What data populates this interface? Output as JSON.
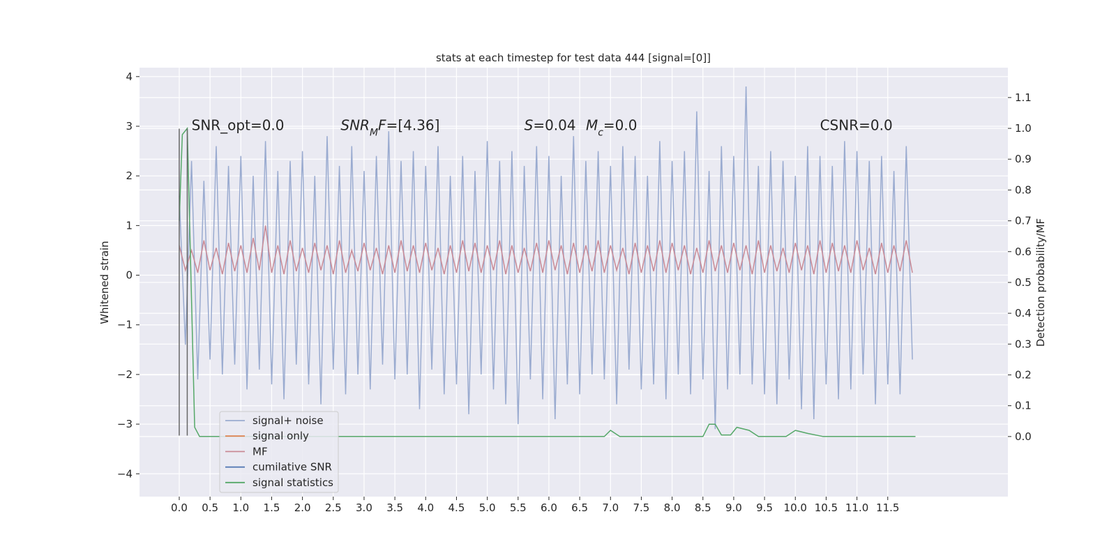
{
  "chart_data": {
    "type": "line",
    "title": "stats at each timestep for test data 444 [signal=[0]]",
    "ylabel": "Whitened strain",
    "y2label": "Detection probability/MF",
    "grid": true,
    "legend": "lower left",
    "xlim": [
      -0.645,
      13.45
    ],
    "ylim": [
      -4.46,
      4.18
    ],
    "y2lim": [
      -0.195,
      1.197
    ],
    "xticks": [
      {
        "value": 0,
        "label": "0.0"
      },
      {
        "value": 0.5,
        "label": "0.5"
      },
      {
        "value": 1,
        "label": "1.0"
      },
      {
        "value": 1.5,
        "label": "1.5"
      },
      {
        "value": 2,
        "label": "2.0"
      },
      {
        "value": 2.5,
        "label": "2.5"
      },
      {
        "value": 3,
        "label": "3.0"
      },
      {
        "value": 3.5,
        "label": "3.5"
      },
      {
        "value": 4,
        "label": "4.0"
      },
      {
        "value": 4.5,
        "label": "4.5"
      },
      {
        "value": 5,
        "label": "5.0"
      },
      {
        "value": 5.5,
        "label": "5.5"
      },
      {
        "value": 6,
        "label": "6.0"
      },
      {
        "value": 6.5,
        "label": "6.5"
      },
      {
        "value": 7,
        "label": "7.0"
      },
      {
        "value": 7.5,
        "label": "7.5"
      },
      {
        "value": 8,
        "label": "8.0"
      },
      {
        "value": 8.5,
        "label": "8.5"
      },
      {
        "value": 9,
        "label": "9.0"
      },
      {
        "value": 9.5,
        "label": "9.5"
      },
      {
        "value": 10,
        "label": "10.0"
      },
      {
        "value": 10.5,
        "label": "10.5"
      },
      {
        "value": 11,
        "label": "11.0"
      },
      {
        "value": 11.5,
        "label": "11.5"
      }
    ],
    "yticks": [
      {
        "value": -4,
        "label": "−4"
      },
      {
        "value": -3,
        "label": "−3"
      },
      {
        "value": -2,
        "label": "−2"
      },
      {
        "value": -1,
        "label": "−1"
      },
      0,
      1,
      2,
      3,
      4
    ],
    "y2ticks": [
      {
        "value": 0,
        "label": "0.0"
      },
      {
        "value": 0.1,
        "label": "0.1"
      },
      {
        "value": 0.2,
        "label": "0.2"
      },
      {
        "value": 0.3,
        "label": "0.3"
      },
      {
        "value": 0.4,
        "label": "0.4"
      },
      {
        "value": 0.5,
        "label": "0.5"
      },
      {
        "value": 0.6,
        "label": "0.6"
      },
      {
        "value": 0.7,
        "label": "0.7"
      },
      {
        "value": 0.8,
        "label": "0.8"
      },
      {
        "value": 0.9,
        "label": "0.9"
      },
      {
        "value": 1,
        "label": "1.0"
      },
      {
        "value": 1.1,
        "label": "1.1"
      }
    ],
    "x": [
      0.0,
      0.1,
      0.2,
      0.3,
      0.4,
      0.5,
      0.6,
      0.7,
      0.8,
      0.9,
      1.0,
      1.1,
      1.2,
      1.3,
      1.4,
      1.5,
      1.6,
      1.7,
      1.8,
      1.9,
      2.0,
      2.1,
      2.2,
      2.3,
      2.4,
      2.5,
      2.6,
      2.7,
      2.8,
      2.9,
      3.0,
      3.1,
      3.2,
      3.3,
      3.4,
      3.5,
      3.6,
      3.7,
      3.8,
      3.9,
      4.0,
      4.1,
      4.2,
      4.3,
      4.4,
      4.5,
      4.6,
      4.7,
      4.8,
      4.9,
      5.0,
      5.1,
      5.2,
      5.3,
      5.4,
      5.5,
      5.6,
      5.7,
      5.8,
      5.9,
      6.0,
      6.1,
      6.2,
      6.3,
      6.4,
      6.5,
      6.6,
      6.7,
      6.8,
      6.9,
      7.0,
      7.1,
      7.2,
      7.3,
      7.4,
      7.5,
      7.6,
      7.7,
      7.8,
      7.9,
      8.0,
      8.1,
      8.2,
      8.3,
      8.4,
      8.5,
      8.6,
      8.7,
      8.8,
      8.9,
      9.0,
      9.1,
      9.2,
      9.3,
      9.4,
      9.5,
      9.6,
      9.7,
      9.8,
      9.9,
      10.0,
      10.1,
      10.2,
      10.3,
      10.4,
      10.5,
      10.6,
      10.7,
      10.8,
      10.9,
      11.0,
      11.1,
      11.2,
      11.3,
      11.4,
      11.5,
      11.6,
      11.7,
      11.8,
      11.9
    ],
    "series": [
      {
        "name": "signal+ noise",
        "color": "#9aabd0",
        "values": [
          1.6,
          -1.4,
          2.3,
          -2.1,
          1.9,
          -1.7,
          2.6,
          -2.0,
          2.2,
          -1.8,
          2.4,
          -2.3,
          2.0,
          -1.9,
          2.7,
          -2.2,
          2.1,
          -2.5,
          2.3,
          -1.8,
          2.5,
          -2.2,
          2.0,
          -2.6,
          2.8,
          -1.9,
          2.2,
          -2.4,
          2.6,
          -2.0,
          2.1,
          -2.3,
          2.4,
          -1.8,
          2.9,
          -2.1,
          2.3,
          -2.0,
          2.5,
          -2.7,
          2.2,
          -1.9,
          2.6,
          -2.4,
          2.0,
          -2.2,
          2.4,
          -2.8,
          2.1,
          -2.0,
          2.7,
          -2.3,
          2.3,
          -2.6,
          2.5,
          -3.0,
          2.2,
          -2.1,
          2.6,
          -2.5,
          2.4,
          -2.9,
          2.0,
          -2.2,
          2.8,
          -2.4,
          2.3,
          -2.0,
          2.5,
          -2.1,
          2.2,
          -2.6,
          2.6,
          -1.9,
          2.4,
          -2.3,
          2.0,
          -2.2,
          2.7,
          -2.5,
          2.3,
          -2.0,
          2.5,
          -2.4,
          3.3,
          -2.1,
          2.1,
          -3.1,
          2.6,
          -2.3,
          2.4,
          -2.0,
          3.8,
          -2.2,
          2.2,
          -2.4,
          2.5,
          -2.6,
          2.3,
          -2.1,
          2.0,
          -2.7,
          2.6,
          -2.9,
          2.4,
          -2.2,
          2.2,
          -2.5,
          2.7,
          -2.3,
          2.5,
          -2.0,
          2.3,
          -2.6,
          2.4,
          -2.2,
          2.1,
          -2.4,
          2.6,
          -1.7
        ]
      },
      {
        "name": "signal only",
        "color": "#dd8452"
      },
      {
        "name": "MF",
        "color": "#c98a96",
        "values": [
          0.6,
          0.1,
          0.5,
          0.05,
          0.7,
          0.1,
          0.55,
          0.02,
          0.65,
          0.08,
          0.6,
          0.05,
          0.75,
          0.1,
          1.0,
          0.05,
          0.6,
          0.02,
          0.7,
          0.08,
          0.55,
          0.05,
          0.65,
          0.1,
          0.6,
          0.02,
          0.7,
          0.05,
          0.5,
          0.08,
          0.65,
          0.1,
          0.55,
          0.02,
          0.6,
          0.05,
          0.7,
          0.08,
          0.6,
          0.05,
          0.65,
          0.1,
          0.55,
          0.02,
          0.6,
          0.05,
          0.7,
          0.08,
          0.65,
          0.05,
          0.6,
          0.1,
          0.7,
          0.02,
          0.6,
          0.05,
          0.55,
          0.08,
          0.65,
          0.05,
          0.7,
          0.1,
          0.6,
          0.02,
          0.65,
          0.05,
          0.6,
          0.08,
          0.7,
          0.05,
          0.6,
          0.1,
          0.55,
          0.02,
          0.65,
          0.05,
          0.6,
          0.08,
          0.7,
          0.05,
          0.65,
          0.1,
          0.6,
          0.02,
          0.55,
          0.05,
          0.7,
          0.08,
          0.6,
          0.05,
          0.65,
          0.1,
          0.6,
          0.02,
          0.7,
          0.05,
          0.6,
          0.08,
          0.55,
          0.05,
          0.65,
          0.1,
          0.6,
          0.02,
          0.7,
          0.05,
          0.65,
          0.08,
          0.6,
          0.05,
          0.7,
          0.1,
          0.55,
          0.02,
          0.65,
          0.05,
          0.6,
          0.08,
          0.7,
          0.05
        ]
      },
      {
        "name": "cumilative SNR",
        "color": "#4c72b0"
      },
      {
        "name": "signal statistics",
        "color": "#55a868",
        "axis": "y2",
        "x": [
          0.0,
          0.05,
          0.13,
          0.25,
          0.33,
          6.9,
          7.0,
          7.15,
          8.5,
          8.6,
          8.7,
          8.8,
          8.95,
          9.05,
          9.25,
          9.4,
          9.85,
          10.0,
          10.2,
          10.45,
          11.95
        ],
        "values": [
          0.7,
          0.98,
          1.0,
          0.03,
          0.0,
          0.0,
          0.02,
          0.0,
          0.0,
          0.04,
          0.04,
          0.005,
          0.005,
          0.03,
          0.02,
          0.0,
          0.0,
          0.02,
          0.01,
          0.0,
          0.0
        ]
      }
    ],
    "vlines": [
      {
        "x": 0.0,
        "ymin": -3.23,
        "ymax": 2.95,
        "color": "#666666"
      },
      {
        "x": 0.13,
        "ymin": -3.23,
        "ymax": 2.95,
        "color": "#666666"
      }
    ],
    "annotations": [
      {
        "x": 0.2,
        "y": 2.92,
        "parts": [
          {
            "text": "SNR_opt=0.0"
          }
        ]
      },
      {
        "x": 2.62,
        "y": 2.92,
        "parts": [
          {
            "text": "SNR",
            "italic": true
          },
          {
            "text": "M",
            "italic": true,
            "sub": true
          },
          {
            "text": "F",
            "italic": true
          },
          {
            "text": "=[4.36]"
          }
        ]
      },
      {
        "x": 5.6,
        "y": 2.92,
        "parts": [
          {
            "text": "S",
            "italic": true
          },
          {
            "text": "=0.04"
          }
        ]
      },
      {
        "x": 6.6,
        "y": 2.92,
        "parts": [
          {
            "text": "M",
            "italic": true
          },
          {
            "text": "c",
            "italic": true,
            "sub": true
          },
          {
            "text": "=0.0"
          }
        ]
      },
      {
        "x": 10.4,
        "y": 2.92,
        "parts": [
          {
            "text": "CSNR=0.0"
          }
        ]
      }
    ]
  }
}
